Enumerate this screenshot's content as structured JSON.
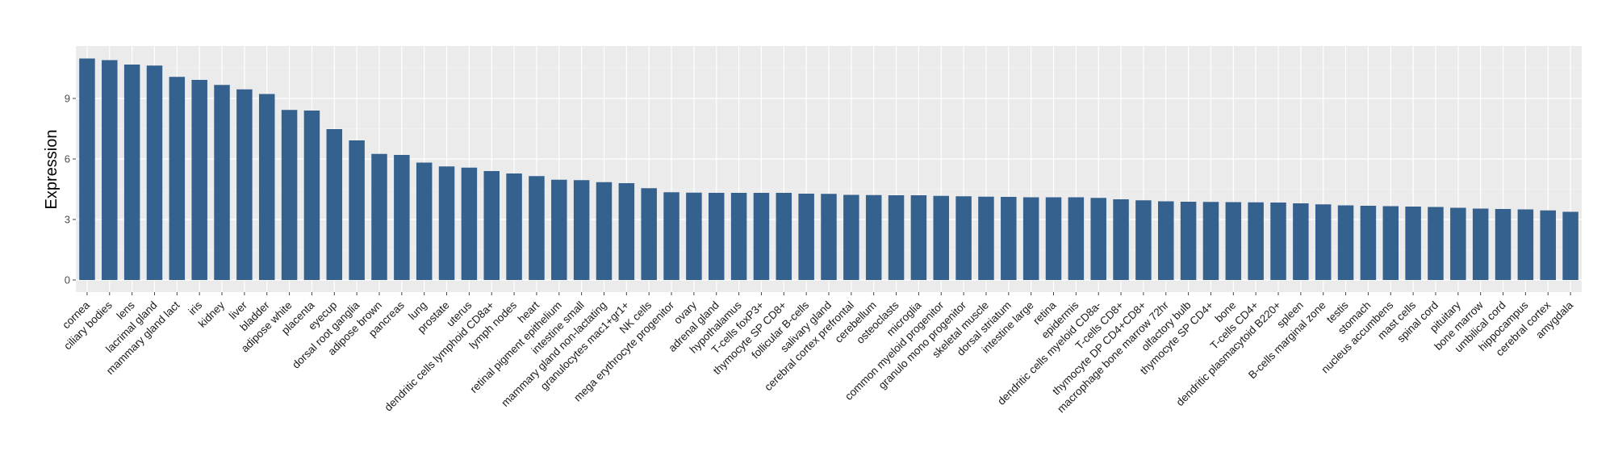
{
  "chart_data": {
    "type": "bar",
    "xlabel": "",
    "ylabel": "Expression",
    "ylim": [
      -0.6,
      11.6
    ],
    "yticks": [
      0,
      3,
      6,
      9
    ],
    "grid": true,
    "legend": "none",
    "colors": {
      "bar": "#35618f",
      "panel": "#ebebeb",
      "grid": "#ffffff"
    },
    "categories": [
      "cornea",
      "ciliary bodies",
      "lens",
      "lacrimal gland",
      "mammary gland  lact",
      "iris",
      "kidney",
      "liver",
      "bladder",
      "adipose white",
      "placenta",
      "eyecup",
      "dorsal root ganglia",
      "adipose brown",
      "pancreas",
      "lung",
      "prostate",
      "uterus",
      "dendritic cells lymphoid CD8a+",
      "lymph nodes",
      "heart",
      "retinal pigment epithelium",
      "intestine small",
      "mammary gland non-lactating",
      "granulocytes mac1+gr1+",
      "NK cells",
      "mega erythrocyte progenitor",
      "ovary",
      "adrenal gland",
      "hypothalamus",
      "T-cells foxP3+",
      "thymocyte SP CD8+",
      "follicular B-cells",
      "salivary gland",
      "cerebral cortex prefrontal",
      "cerebellum",
      "osteoclasts",
      "microglia",
      "common myeloid progenitor",
      "granulo mono progenitor",
      "skeletal muscle",
      "dorsal striatum",
      "intestine large",
      "retina",
      "epidermis",
      "dendritic cells myeloid CD8a-",
      "T-cells CD8+",
      "thymocyte DP CD4+CD8+",
      "macrophage bone marrow 72hr",
      "olfactory bulb",
      "thymocyte SP CD4+",
      "bone",
      "T-cells CD4+",
      "dendritic plasmacytoid B220+",
      "spleen",
      "B-cells marginal zone",
      "testis",
      "stomach",
      "nucleus accumbens",
      "mast cells",
      "spinal cord",
      "pituitary",
      "bone marrow",
      "umbilical cord",
      "hippocampus",
      "cerebral cortex",
      "amygdala"
    ],
    "values": [
      10.98,
      10.9,
      10.68,
      10.63,
      10.07,
      9.92,
      9.67,
      9.45,
      9.22,
      8.43,
      8.4,
      7.48,
      6.92,
      6.25,
      6.2,
      5.82,
      5.63,
      5.57,
      5.4,
      5.28,
      5.15,
      4.97,
      4.95,
      4.85,
      4.8,
      4.55,
      4.35,
      4.33,
      4.32,
      4.32,
      4.32,
      4.32,
      4.28,
      4.27,
      4.22,
      4.21,
      4.2,
      4.2,
      4.17,
      4.15,
      4.13,
      4.12,
      4.1,
      4.1,
      4.1,
      4.07,
      4.0,
      3.95,
      3.9,
      3.88,
      3.87,
      3.86,
      3.85,
      3.84,
      3.8,
      3.75,
      3.7,
      3.68,
      3.66,
      3.64,
      3.62,
      3.58,
      3.54,
      3.52,
      3.5,
      3.45,
      3.38
    ]
  }
}
